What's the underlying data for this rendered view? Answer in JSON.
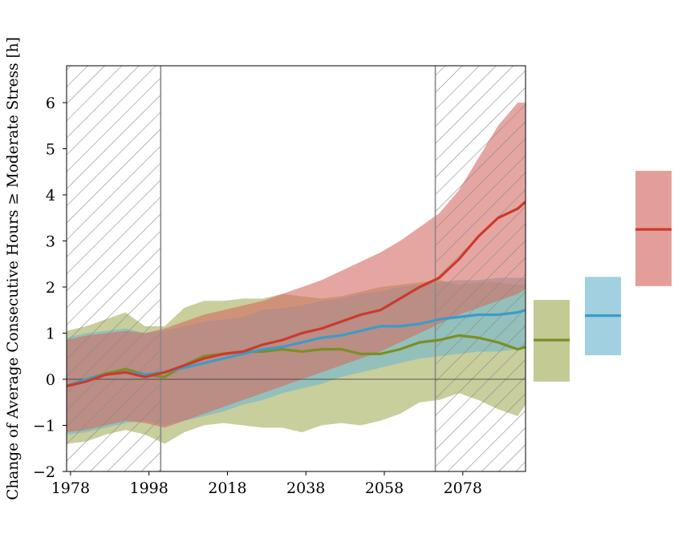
{
  "chart_data": {
    "type": "area",
    "title": "",
    "xlabel": "",
    "ylabel": "Change of Average Consecutive Hours ≥ Moderate Stress [h]",
    "xlim": [
      1977,
      2094
    ],
    "ylim": [
      -2,
      6.8
    ],
    "x_ticks": [
      "1978",
      "1998",
      "2018",
      "2038",
      "2058",
      "2078"
    ],
    "x_tick_values": [
      1978,
      1998,
      2018,
      2038,
      2058,
      2078
    ],
    "y_ticks": [
      "−2",
      "−1",
      "0",
      "1",
      "2",
      "3",
      "4",
      "5",
      "6"
    ],
    "y_tick_values": [
      -2,
      -1,
      0,
      1,
      2,
      3,
      4,
      5,
      6
    ],
    "hatched_periods": [
      [
        1977,
        2001
      ],
      [
        2071,
        2094
      ]
    ],
    "zero_line": 0,
    "colors": {
      "green": "#7b8f23",
      "blue": "#3a9cc8",
      "red": "#cc3a2b",
      "green_fill": "#a3ad5a",
      "blue_fill": "#6fb7cf",
      "red_fill": "#d46a63"
    },
    "series": [
      {
        "key": "green",
        "x": [
          1977,
          1982,
          1987,
          1992,
          1997,
          2002,
          2007,
          2012,
          2017,
          2022,
          2027,
          2032,
          2037,
          2042,
          2047,
          2052,
          2057,
          2062,
          2067,
          2072,
          2077,
          2082,
          2087,
          2092,
          2094
        ],
        "mean": [
          -0.15,
          0.0,
          0.12,
          0.22,
          0.1,
          0.05,
          0.3,
          0.5,
          0.55,
          0.6,
          0.6,
          0.65,
          0.6,
          0.65,
          0.65,
          0.55,
          0.55,
          0.65,
          0.8,
          0.85,
          0.95,
          0.9,
          0.8,
          0.65,
          0.7
        ],
        "upper": [
          1.05,
          1.15,
          1.3,
          1.45,
          1.15,
          1.15,
          1.55,
          1.7,
          1.7,
          1.75,
          1.75,
          1.85,
          1.8,
          1.75,
          1.8,
          1.9,
          2.0,
          2.05,
          2.1,
          2.15,
          2.05,
          2.1,
          2.1,
          2.05,
          2.05
        ],
        "lower": [
          -1.4,
          -1.35,
          -1.2,
          -1.1,
          -1.2,
          -1.4,
          -1.15,
          -1.0,
          -0.95,
          -1.0,
          -1.05,
          -1.05,
          -1.15,
          -1.0,
          -0.95,
          -1.0,
          -0.9,
          -0.75,
          -0.5,
          -0.45,
          -0.3,
          -0.45,
          -0.65,
          -0.8,
          -0.55
        ]
      },
      {
        "key": "blue",
        "x": [
          1977,
          1982,
          1987,
          1992,
          1997,
          2002,
          2007,
          2012,
          2017,
          2022,
          2027,
          2032,
          2037,
          2042,
          2047,
          2052,
          2057,
          2062,
          2067,
          2072,
          2077,
          2082,
          2087,
          2092,
          2094
        ],
        "mean": [
          -0.15,
          0.0,
          0.1,
          0.15,
          0.1,
          0.15,
          0.25,
          0.35,
          0.45,
          0.55,
          0.65,
          0.7,
          0.8,
          0.9,
          0.95,
          1.05,
          1.15,
          1.15,
          1.2,
          1.3,
          1.35,
          1.4,
          1.4,
          1.45,
          1.5
        ],
        "upper": [
          0.9,
          1.0,
          1.05,
          1.1,
          1.0,
          1.05,
          1.15,
          1.25,
          1.3,
          1.35,
          1.5,
          1.55,
          1.6,
          1.7,
          1.75,
          1.85,
          1.9,
          2.0,
          2.05,
          2.1,
          2.15,
          2.15,
          2.2,
          2.2,
          2.2
        ],
        "lower": [
          -1.2,
          -1.15,
          -1.05,
          -0.95,
          -0.9,
          -1.0,
          -0.9,
          -0.8,
          -0.7,
          -0.55,
          -0.45,
          -0.3,
          -0.2,
          -0.1,
          0.05,
          0.15,
          0.25,
          0.35,
          0.45,
          0.5,
          0.55,
          0.6,
          0.6,
          0.65,
          0.65
        ]
      },
      {
        "key": "red",
        "x": [
          1977,
          1982,
          1987,
          1992,
          1997,
          2002,
          2007,
          2012,
          2017,
          2022,
          2027,
          2032,
          2037,
          2042,
          2047,
          2052,
          2057,
          2062,
          2067,
          2072,
          2077,
          2082,
          2087,
          2092,
          2094
        ],
        "mean": [
          -0.15,
          -0.05,
          0.1,
          0.15,
          0.05,
          0.15,
          0.3,
          0.45,
          0.55,
          0.6,
          0.75,
          0.85,
          1.0,
          1.1,
          1.25,
          1.4,
          1.5,
          1.75,
          2.0,
          2.2,
          2.6,
          3.1,
          3.5,
          3.7,
          3.85
        ],
        "upper": [
          0.85,
          0.95,
          1.0,
          1.05,
          1.0,
          1.1,
          1.25,
          1.4,
          1.5,
          1.6,
          1.7,
          1.85,
          2.0,
          2.15,
          2.35,
          2.55,
          2.75,
          3.0,
          3.3,
          3.6,
          4.1,
          4.8,
          5.5,
          6.0,
          6.0
        ],
        "lower": [
          -1.15,
          -1.1,
          -1.0,
          -0.9,
          -0.95,
          -1.05,
          -0.9,
          -0.75,
          -0.6,
          -0.45,
          -0.3,
          -0.15,
          0.0,
          0.15,
          0.3,
          0.45,
          0.6,
          0.8,
          1.0,
          1.2,
          1.4,
          1.55,
          1.7,
          1.85,
          1.95
        ]
      }
    ],
    "side_boxes": [
      {
        "key": "green",
        "low": -0.05,
        "high": 1.72,
        "mean": 0.85
      },
      {
        "key": "blue",
        "low": 0.52,
        "high": 2.22,
        "mean": 1.38
      },
      {
        "key": "red",
        "low": 2.02,
        "high": 4.52,
        "mean": 3.25
      }
    ]
  }
}
